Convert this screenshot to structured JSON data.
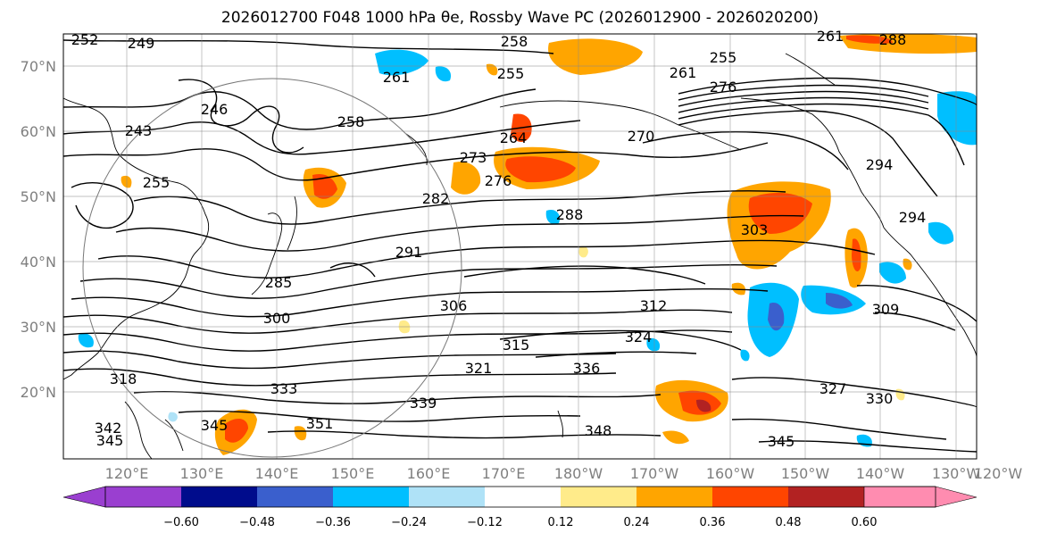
{
  "title": {
    "line": "2026012700 F048 1000 hPa θe, Rossby Wave PC (2026012900 - 2026020200)"
  },
  "lat_labels": [
    "70°N",
    "60°N",
    "50°N",
    "40°N",
    "30°N",
    "20°N"
  ],
  "lon_labels": [
    "120°E",
    "130°E",
    "140°E",
    "150°E",
    "160°E",
    "170°E",
    "180°W",
    "170°W",
    "160°W",
    "150°W",
    "140°W",
    "130°W",
    "120°W"
  ],
  "contour_labels": [
    "252",
    "249",
    "258",
    "261",
    "288",
    "255",
    "261",
    "255",
    "276",
    "261",
    "246",
    "258",
    "243",
    "264",
    "273",
    "270",
    "276",
    "282",
    "255",
    "288",
    "303",
    "291",
    "294",
    "306",
    "300",
    "312",
    "309",
    "315",
    "324",
    "321",
    "336",
    "318",
    "327",
    "330",
    "339",
    "333",
    "351",
    "342",
    "345",
    "348",
    "345",
    "345",
    "294",
    "285"
  ],
  "colorbar": {
    "ticks": [
      "−0.60",
      "−0.48",
      "−0.36",
      "−0.24",
      "−0.12",
      "0.12",
      "0.24",
      "0.36",
      "0.48",
      "0.60"
    ],
    "colors": [
      "#9a3fd0",
      "#000c8c",
      "#3a5fcd",
      "#00bfff",
      "#afe2f7",
      "#ffffff",
      "#ffeb8a",
      "#ffa500",
      "#ff4500",
      "#b22222",
      "#ff8cb0"
    ]
  }
}
